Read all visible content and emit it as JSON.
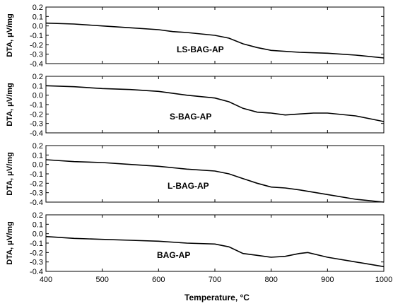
{
  "chart_data": [
    {
      "type": "line",
      "series_label": "LS-BAG-AP",
      "ylabel": "DTA, μV/mg",
      "xlim": [
        400,
        1000
      ],
      "ylim": [
        -0.4,
        0.2
      ],
      "y_ticks": [
        "0.2",
        "0.1",
        "0.0",
        "-0.1",
        "-0.2",
        "-0.3",
        "-0.4"
      ],
      "x": [
        400,
        450,
        500,
        550,
        600,
        625,
        650,
        700,
        725,
        750,
        775,
        800,
        850,
        900,
        950,
        1000
      ],
      "values": [
        0.03,
        0.02,
        0.0,
        -0.02,
        -0.04,
        -0.06,
        -0.07,
        -0.1,
        -0.13,
        -0.19,
        -0.23,
        -0.26,
        -0.28,
        -0.29,
        -0.31,
        -0.34
      ]
    },
    {
      "type": "line",
      "series_label": "S-BAG-AP",
      "ylabel": "DTA, μV/mg",
      "xlim": [
        400,
        1000
      ],
      "ylim": [
        -0.4,
        0.2
      ],
      "y_ticks": [
        "0.2",
        "0.1",
        "0.0",
        "-0.1",
        "-0.2",
        "-0.3",
        "-0.4"
      ],
      "x": [
        400,
        450,
        500,
        550,
        600,
        650,
        700,
        725,
        750,
        775,
        800,
        825,
        850,
        875,
        900,
        950,
        1000
      ],
      "values": [
        0.1,
        0.09,
        0.07,
        0.06,
        0.04,
        0.0,
        -0.03,
        -0.07,
        -0.14,
        -0.18,
        -0.19,
        -0.21,
        -0.2,
        -0.19,
        -0.19,
        -0.22,
        -0.28
      ]
    },
    {
      "type": "line",
      "series_label": "L-BAG-AP",
      "ylabel": "DTA, μV/mg",
      "xlim": [
        400,
        1000
      ],
      "ylim": [
        -0.4,
        0.2
      ],
      "y_ticks": [
        "0.2",
        "0.1",
        "0.0",
        "-0.1",
        "-0.2",
        "-0.3",
        "-0.4"
      ],
      "x": [
        400,
        450,
        500,
        550,
        600,
        650,
        700,
        725,
        750,
        775,
        800,
        825,
        850,
        900,
        950,
        1000
      ],
      "values": [
        0.05,
        0.03,
        0.02,
        0.0,
        -0.02,
        -0.05,
        -0.07,
        -0.1,
        -0.15,
        -0.2,
        -0.24,
        -0.25,
        -0.27,
        -0.32,
        -0.37,
        -0.4
      ]
    },
    {
      "type": "line",
      "series_label": "BAG-AP",
      "ylabel": "DTA, μV/mg",
      "xlim": [
        400,
        1000
      ],
      "ylim": [
        -0.4,
        0.2
      ],
      "y_ticks": [
        "0.2",
        "0.1",
        "0.0",
        "-0.1",
        "-0.2",
        "-0.3",
        "-0.4"
      ],
      "x": [
        400,
        450,
        500,
        550,
        600,
        650,
        700,
        725,
        750,
        775,
        800,
        825,
        850,
        865,
        900,
        950,
        1000
      ],
      "values": [
        -0.03,
        -0.05,
        -0.06,
        -0.07,
        -0.08,
        -0.1,
        -0.11,
        -0.14,
        -0.21,
        -0.23,
        -0.25,
        -0.24,
        -0.21,
        -0.2,
        -0.25,
        -0.3,
        -0.35
      ]
    }
  ],
  "x_axis": {
    "label": "Temperature, °C",
    "ticks": [
      "400",
      "500",
      "600",
      "700",
      "800",
      "900",
      "1000"
    ]
  }
}
